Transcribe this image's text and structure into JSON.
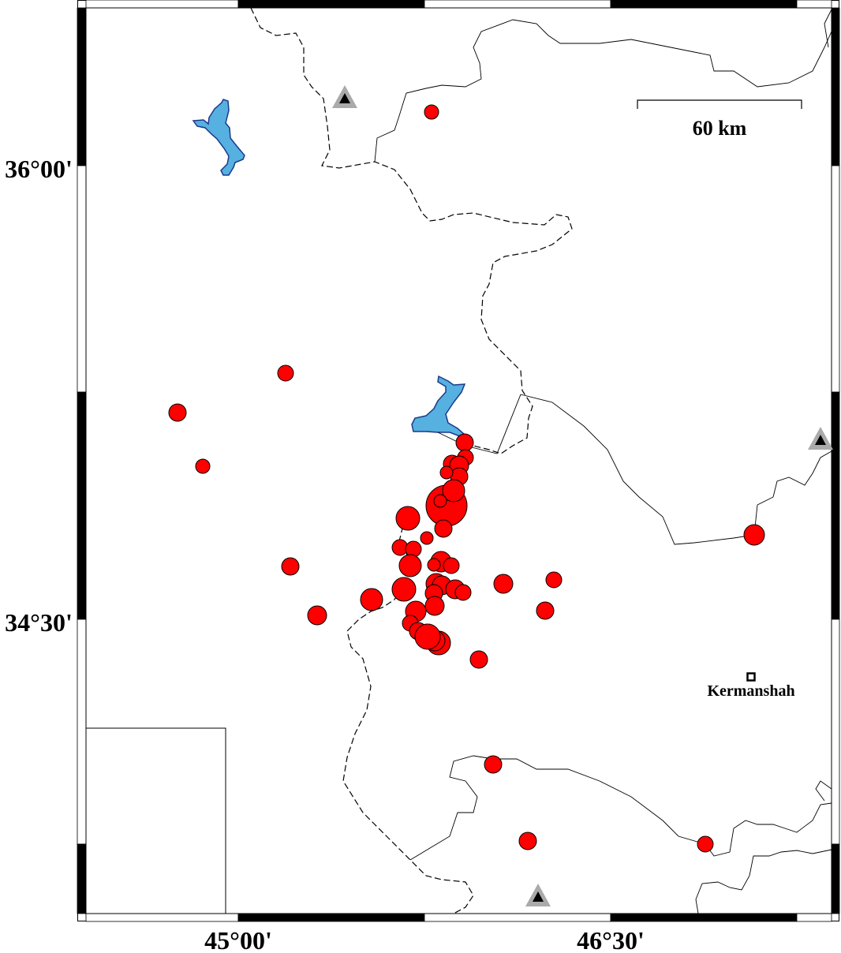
{
  "map": {
    "axis_labels": {
      "lat": [
        "36°00'",
        "34°30'"
      ],
      "lon": [
        "45°00'",
        "46°30'"
      ]
    },
    "scale_bar": {
      "label": "60 km"
    },
    "city": {
      "name": "Kermanshah",
      "icon": "square-marker-icon"
    },
    "colors": {
      "earthquake": "#ff0000",
      "lake": "#56b0e0",
      "lake_outline": "#1a3a8a",
      "station": "#000000",
      "station_halo": "#aaaaaa"
    },
    "legend": {
      "earthquake_icon": "red-circle-icon",
      "station_icon": "triangle-icon"
    }
  }
}
